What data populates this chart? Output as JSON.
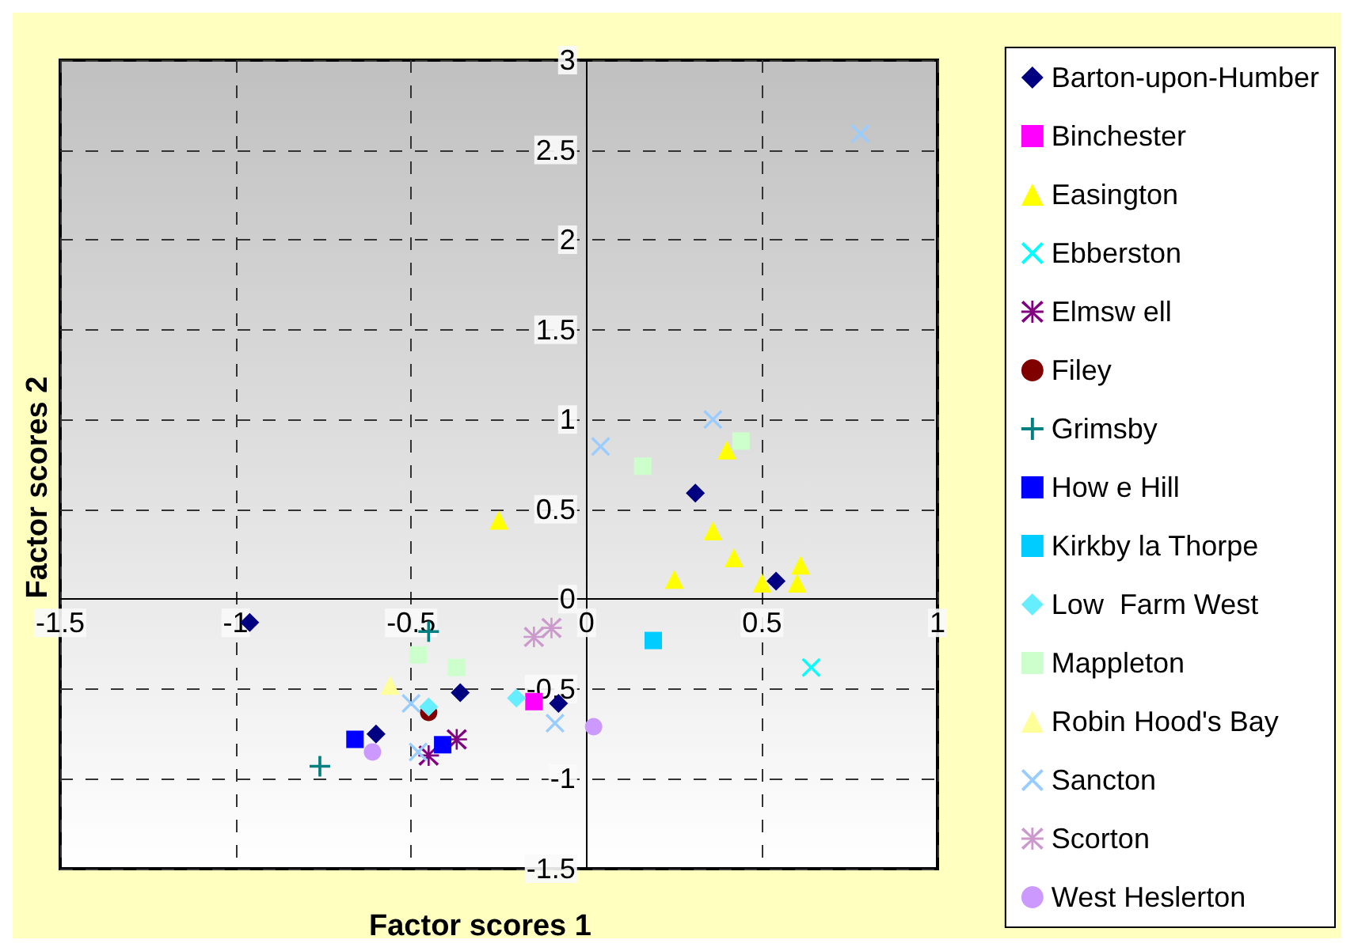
{
  "chart_data": {
    "type": "scatter",
    "xlabel": "Factor scores 1",
    "ylabel": "Factor scores 2",
    "xlim": [
      -1.5,
      1
    ],
    "xticks": [
      -1.5,
      -1,
      -0.5,
      0,
      0.5,
      1
    ],
    "ylim": [
      -1.5,
      3
    ],
    "yticks": [
      -1.5,
      -1,
      -0.5,
      0,
      0.5,
      1,
      1.5,
      2,
      2.5,
      3
    ],
    "grid": true,
    "legend": "right",
    "series": [
      {
        "name": "Barton-upon-Humber",
        "color": "#000080",
        "marker": "diamond",
        "x": [
          -0.96,
          -0.36,
          -0.6,
          -0.08,
          0.31,
          0.54
        ],
        "values": [
          -0.13,
          -0.52,
          -0.75,
          -0.58,
          0.59,
          0.1
        ]
      },
      {
        "name": "Binchester",
        "color": "#ff00ff",
        "marker": "square",
        "x": [
          -0.15
        ],
        "values": [
          -0.57
        ]
      },
      {
        "name": "Easington",
        "color": "#ffff00",
        "marker": "triangle",
        "x": [
          -0.25,
          0.4,
          0.36,
          0.42,
          0.25,
          0.5,
          0.6,
          0.61
        ],
        "values": [
          0.44,
          0.83,
          0.38,
          0.23,
          0.11,
          0.09,
          0.09,
          0.19
        ]
      },
      {
        "name": "Ebberston",
        "color": "#00ffff",
        "marker": "cross",
        "x": [
          0.64
        ],
        "values": [
          -0.38
        ]
      },
      {
        "name": "Elmsw ell",
        "color": "#800080",
        "marker": "star",
        "x": [
          -0.37,
          -0.45
        ],
        "values": [
          -0.78,
          -0.87
        ]
      },
      {
        "name": "Filey",
        "color": "#800000",
        "marker": "circle",
        "x": [
          -0.45
        ],
        "values": [
          -0.63
        ]
      },
      {
        "name": "Grimsby",
        "color": "#008080",
        "marker": "plus",
        "x": [
          -0.45,
          -0.76
        ],
        "values": [
          -0.18,
          -0.93
        ]
      },
      {
        "name": "How e Hill",
        "color": "#0000ff",
        "marker": "square",
        "x": [
          -0.66,
          -0.41
        ],
        "values": [
          -0.78,
          -0.81
        ]
      },
      {
        "name": "Kirkby la Thorpe",
        "color": "#00ccff",
        "marker": "square",
        "x": [
          0.19
        ],
        "values": [
          -0.23
        ]
      },
      {
        "name": "Low  Farm West",
        "color": "#66eeff",
        "marker": "diamond",
        "x": [
          -0.45,
          -0.2
        ],
        "values": [
          -0.6,
          -0.55
        ]
      },
      {
        "name": "Mappleton",
        "color": "#ccffcc",
        "marker": "square",
        "x": [
          -0.48,
          -0.37,
          0.16,
          0.44
        ],
        "values": [
          -0.31,
          -0.38,
          0.74,
          0.88
        ]
      },
      {
        "name": "Robin Hood's Bay",
        "color": "#ffff99",
        "marker": "triangle",
        "x": [
          -0.56
        ],
        "values": [
          -0.48
        ]
      },
      {
        "name": "Sancton",
        "color": "#99ccff",
        "marker": "cross",
        "x": [
          -0.5,
          -0.48,
          -0.09,
          0.04,
          0.36,
          0.78
        ],
        "values": [
          -0.58,
          -0.85,
          -0.69,
          0.85,
          1.0,
          2.59
        ]
      },
      {
        "name": "Scorton",
        "color": "#cc99cc",
        "marker": "star",
        "x": [
          -0.15,
          -0.1
        ],
        "values": [
          -0.21,
          -0.16
        ]
      },
      {
        "name": "West Heslerton",
        "color": "#cc99ff",
        "marker": "circle",
        "x": [
          -0.61,
          0.02
        ],
        "values": [
          -0.85,
          -0.71
        ]
      }
    ]
  }
}
